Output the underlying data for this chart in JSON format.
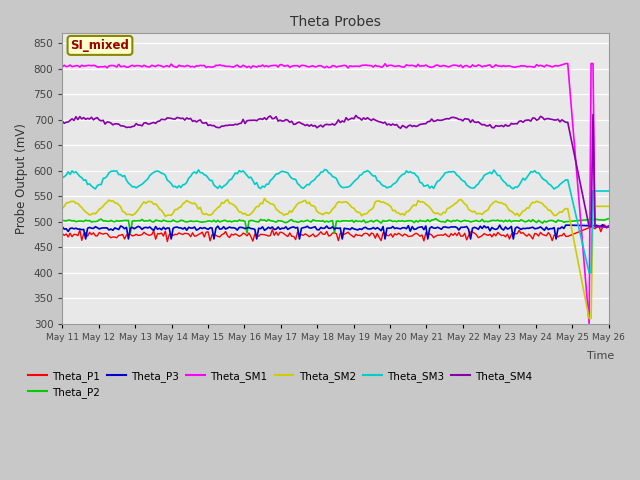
{
  "title": "Theta Probes",
  "xlabel": "Time",
  "ylabel": "Probe Output (mV)",
  "ylim": [
    300,
    870
  ],
  "yticks": [
    300,
    350,
    400,
    450,
    500,
    550,
    600,
    650,
    700,
    750,
    800,
    850
  ],
  "annotation": "SI_mixed",
  "fig_color": "#c8c8c8",
  "plot_bg": "#e8e8e8",
  "series": {
    "Theta_P1": {
      "color": "#ff0000",
      "lw": 1.0
    },
    "Theta_P2": {
      "color": "#00cc00",
      "lw": 1.2
    },
    "Theta_P3": {
      "color": "#0000cc",
      "lw": 1.2
    },
    "Theta_SM1": {
      "color": "#ff00ff",
      "lw": 1.2
    },
    "Theta_SM2": {
      "color": "#cccc00",
      "lw": 1.2
    },
    "Theta_SM3": {
      "color": "#00cccc",
      "lw": 1.2
    },
    "Theta_SM4": {
      "color": "#8800aa",
      "lw": 1.2
    }
  },
  "x_labels": [
    "May 11",
    "May 12",
    "May 13",
    "May 14",
    "May 15",
    "May 16",
    "May 17",
    "May 18",
    "May 19",
    "May 20",
    "May 21",
    "May 22",
    "May 23",
    "May 24",
    "May 25",
    "May 26"
  ]
}
